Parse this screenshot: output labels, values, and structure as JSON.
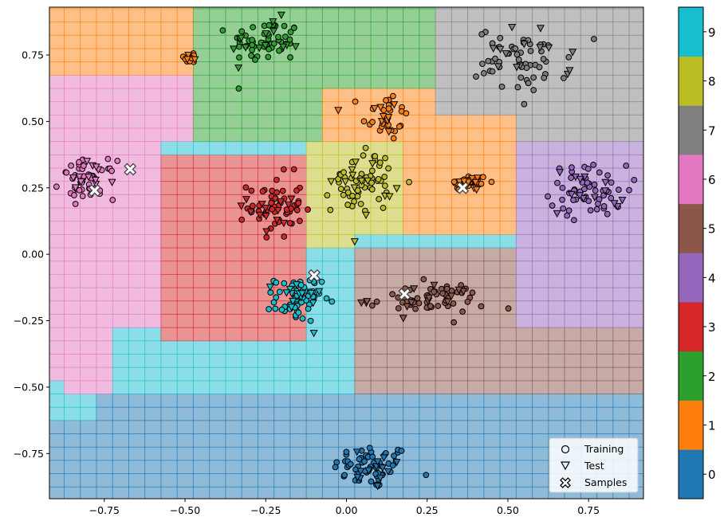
{
  "chart_data": {
    "type": "scatter",
    "title": "",
    "xlabel": "",
    "ylabel": "",
    "xlim": [
      -0.92,
      0.92
    ],
    "ylim": [
      -0.92,
      0.93
    ],
    "xticks": [
      -0.75,
      -0.5,
      -0.25,
      0.0,
      0.25,
      0.5,
      0.75
    ],
    "yticks": [
      -0.75,
      -0.5,
      -0.25,
      0.0,
      0.25,
      0.5,
      0.75
    ],
    "xtick_labels": [
      "−0.75",
      "−0.50",
      "−0.25",
      "0.00",
      "0.25",
      "0.50",
      "0.75"
    ],
    "ytick_labels": [
      "−0.75",
      "−0.50",
      "−0.25",
      "0.00",
      "0.25",
      "0.50",
      "0.75"
    ],
    "grid": "on (fine grid over decision regions)",
    "legend": {
      "placement": "lower-right",
      "entries": [
        {
          "label": "Training",
          "marker": "circle"
        },
        {
          "label": "Test",
          "marker": "triangle-down"
        },
        {
          "label": "Samples",
          "marker": "x-filled"
        }
      ]
    },
    "colorbar": {
      "placement": "right",
      "labels": [
        "0",
        "1",
        "2",
        "3",
        "4",
        "5",
        "6",
        "7",
        "8",
        "9"
      ],
      "colors": [
        "#1f77b4",
        "#ff7f0e",
        "#2ca02c",
        "#d62728",
        "#9467bd",
        "#8c564b",
        "#e377c2",
        "#7f7f7f",
        "#bcbd22",
        "#17becf"
      ]
    },
    "decision_regions": {
      "description": "Background colored by predicted class (0-9) over the 2D plane.",
      "approximate_regions": [
        {
          "class": 0,
          "area": "bottom band, y < -0.5 (x > -0.75)"
        },
        {
          "class": 1,
          "area": "top-left y > 0.68 and center-right cluster around (0.35, 0.28)"
        },
        {
          "class": 2,
          "area": "top-center x in [-0.45, 0.2], y > 0.45"
        },
        {
          "class": 3,
          "area": "center-left x in [-0.55, -0.1], y in [-0.3, 0.4]"
        },
        {
          "class": 4,
          "area": "right x > 0.5, y in [-0.25, 0.5]"
        },
        {
          "class": 5,
          "area": "lower-right x > 0.0, y in [-0.6, -0.02]"
        },
        {
          "class": 6,
          "area": "left x < -0.5, y in [-0.5, 0.68]"
        },
        {
          "class": 7,
          "area": "top-right x > 0.25, y > 0.45"
        },
        {
          "class": 8,
          "area": "center x in [-0.1, 0.25], y in [0.1, 0.5]"
        },
        {
          "class": 9,
          "area": "center-lower y in [-0.6, 0.0], x < 0.2"
        }
      ]
    },
    "clusters": [
      {
        "class": 0,
        "center": [
          0.08,
          -0.8
        ],
        "spread": [
          0.1,
          0.07
        ],
        "n_train": 55,
        "n_test": 14
      },
      {
        "class": 1,
        "center": [
          0.12,
          0.52
        ],
        "spread": [
          0.06,
          0.08
        ],
        "n_train": 26,
        "n_test": 9
      },
      {
        "class": 1,
        "center": [
          0.38,
          0.27
        ],
        "spread": [
          0.05,
          0.025
        ],
        "n_train": 30,
        "n_test": 10
      },
      {
        "class": 1,
        "center": [
          -0.48,
          0.74
        ],
        "spread": [
          0.02,
          0.02
        ],
        "n_train": 10,
        "n_test": 3
      },
      {
        "class": 2,
        "center": [
          -0.25,
          0.8
        ],
        "spread": [
          0.09,
          0.07
        ],
        "n_train": 55,
        "n_test": 14
      },
      {
        "class": 3,
        "center": [
          -0.22,
          0.18
        ],
        "spread": [
          0.07,
          0.1
        ],
        "n_train": 55,
        "n_test": 14
      },
      {
        "class": 4,
        "center": [
          0.75,
          0.24
        ],
        "spread": [
          0.1,
          0.08
        ],
        "n_train": 55,
        "n_test": 14
      },
      {
        "class": 5,
        "center": [
          0.25,
          -0.17
        ],
        "spread": [
          0.15,
          0.05
        ],
        "n_train": 55,
        "n_test": 14
      },
      {
        "class": 6,
        "center": [
          -0.8,
          0.28
        ],
        "spread": [
          0.07,
          0.06
        ],
        "n_train": 45,
        "n_test": 12
      },
      {
        "class": 7,
        "center": [
          0.55,
          0.73
        ],
        "spread": [
          0.12,
          0.1
        ],
        "n_train": 55,
        "n_test": 14
      },
      {
        "class": 8,
        "center": [
          0.05,
          0.28
        ],
        "spread": [
          0.08,
          0.1
        ],
        "n_train": 55,
        "n_test": 14
      },
      {
        "class": 9,
        "center": [
          -0.15,
          -0.17
        ],
        "spread": [
          0.06,
          0.07
        ],
        "n_train": 55,
        "n_test": 14
      }
    ],
    "samples": [
      [
        -0.78,
        0.24
      ],
      [
        -0.67,
        0.32
      ],
      [
        -0.1,
        -0.08
      ],
      [
        0.18,
        -0.15
      ],
      [
        0.36,
        0.25
      ]
    ]
  }
}
